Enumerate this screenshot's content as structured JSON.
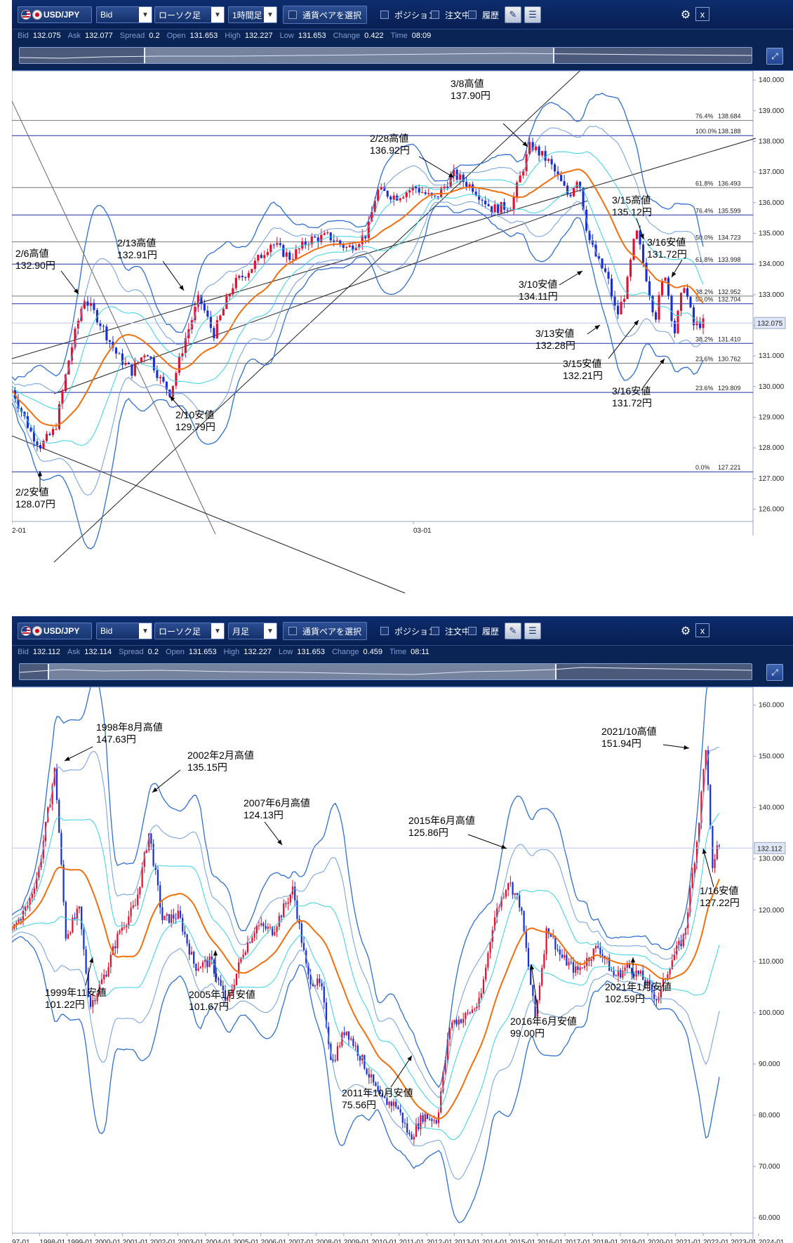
{
  "panels": [
    {
      "toolbar": {
        "symbol": "USD/JPY",
        "price_type": "Bid",
        "chart_type": "ローソク足",
        "timeframe": "1時間足",
        "pair_select_label": "通貨ペアを選択",
        "position_label": "ポジション",
        "order_label": "注文中",
        "history_label": "履歴",
        "close_label": "x"
      },
      "quote": {
        "bid_label": "Bid",
        "bid": "132.075",
        "ask_label": "Ask",
        "ask": "132.077",
        "spread_label": "Spread",
        "spread": "0.2",
        "open_label": "Open",
        "open": "131.653",
        "high_label": "High",
        "high": "132.227",
        "low_label": "Low",
        "low": "131.653",
        "change_label": "Change",
        "change": "0.422",
        "time_label": "Time",
        "time": "08:09"
      },
      "current_price_label": "132.075",
      "annotations": [
        {
          "l1": "3/8高値",
          "l2": "137.90円"
        },
        {
          "l1": "2/28高値",
          "l2": "136.92円"
        },
        {
          "l1": "3/15高値",
          "l2": "135.12円"
        },
        {
          "l1": "3/16安値",
          "l2": "131.72円"
        },
        {
          "l1": "2/13高値",
          "l2": "132.91円"
        },
        {
          "l1": "2/6高値",
          "l2": "132.90円"
        },
        {
          "l1": "3/10安値",
          "l2": "134.11円"
        },
        {
          "l1": "3/13安値",
          "l2": "132.28円"
        },
        {
          "l1": "3/15安値",
          "l2": "132.21円"
        },
        {
          "l1": "3/16安値",
          "l2": "131.72円"
        },
        {
          "l1": "2/10安値",
          "l2": "129.79円"
        },
        {
          "l1": "2/2安値",
          "l2": "128.07円"
        }
      ]
    },
    {
      "toolbar": {
        "symbol": "USD/JPY",
        "price_type": "Bid",
        "chart_type": "ローソク足",
        "timeframe": "月足",
        "pair_select_label": "通貨ペアを選択",
        "position_label": "ポジション",
        "order_label": "注文中",
        "history_label": "履歴",
        "close_label": "x"
      },
      "quote": {
        "bid_label": "Bid",
        "bid": "132.112",
        "ask_label": "Ask",
        "ask": "132.114",
        "spread_label": "Spread",
        "spread": "0.2",
        "open_label": "Open",
        "open": "131.653",
        "high_label": "High",
        "high": "132.227",
        "low_label": "Low",
        "low": "131.653",
        "change_label": "Change",
        "change": "0.459",
        "time_label": "Time",
        "time": "08:11"
      },
      "current_price_label": "132.112",
      "annotations": [
        {
          "l1": "1998年8月高値",
          "l2": "147.63円"
        },
        {
          "l1": "2002年2月高値",
          "l2": "135.15円"
        },
        {
          "l1": "2007年6月高値",
          "l2": "124.13円"
        },
        {
          "l1": "2015年6月高値",
          "l2": "125.86円"
        },
        {
          "l1": "2021/10高値",
          "l2": "151.94円"
        },
        {
          "l1": "1/16安値",
          "l2": "127.22円"
        },
        {
          "l1": "1999年11安値",
          "l2": "101.22円"
        },
        {
          "l1": "2005年1月安値",
          "l2": "101.67円"
        },
        {
          "l1": "2021年1月安値",
          "l2": "102.59円"
        },
        {
          "l1": "2016年6月安値",
          "l2": "99.00円"
        },
        {
          "l1": "2011年10月安値",
          "l2": "75.56円"
        }
      ]
    }
  ],
  "chart_data": [
    {
      "type": "candlestick",
      "timeframe": "1時間足",
      "y_ticks": [
        "126.000",
        "127.000",
        "128.000",
        "129.000",
        "130.000",
        "131.000",
        "132.000",
        "133.000",
        "134.000",
        "135.000",
        "136.000",
        "137.000",
        "138.000",
        "139.000",
        "140.000"
      ],
      "ylim": [
        125.6,
        140.3
      ],
      "x_ticks": [
        "2-01",
        "03-01"
      ],
      "fib_levels": [
        {
          "pct": "76.4%",
          "value": 138.684,
          "label": "138.684",
          "color": "#777777"
        },
        {
          "pct": "100.0%",
          "value": 138.188,
          "label": "138.188",
          "color": "#1f2fa8"
        },
        {
          "pct": "61.8%",
          "value": 136.493,
          "label": "136.493",
          "color": "#777777"
        },
        {
          "pct": "76.4%",
          "value": 135.599,
          "label": "135.599",
          "color": "#1f2fa8"
        },
        {
          "pct": "50.0%",
          "value": 134.723,
          "label": "134.723",
          "color": "#777777"
        },
        {
          "pct": "61.8%",
          "value": 133.998,
          "label": "133.998",
          "color": "#1f2fa8"
        },
        {
          "pct": "38.2%",
          "value": 132.952,
          "label": "132.952",
          "color": "#777777"
        },
        {
          "pct": "50.0%",
          "value": 132.704,
          "label": "132.704",
          "color": "#1f2fa8"
        },
        {
          "pct": "38.2%",
          "value": 131.41,
          "label": "131.410",
          "color": "#1f2fa8"
        },
        {
          "pct": "23.6%",
          "value": 130.762,
          "label": "130.762",
          "color": "#777777"
        },
        {
          "pct": "23.6%",
          "value": 129.809,
          "label": "129.809",
          "color": "#1f2fa8"
        },
        {
          "pct": "0.0%",
          "value": 127.221,
          "label": "127.221",
          "color": "#1f2fa8"
        }
      ],
      "current_price": 132.075,
      "price_path": [
        {
          "t": 0,
          "p": 129.9
        },
        {
          "t": 2,
          "p": 129.2
        },
        {
          "t": 4,
          "p": 128.5
        },
        {
          "t": 6,
          "p": 128.07
        },
        {
          "t": 9,
          "p": 128.6
        },
        {
          "t": 12,
          "p": 131.0
        },
        {
          "t": 15,
          "p": 132.9
        },
        {
          "t": 18,
          "p": 132.2
        },
        {
          "t": 22,
          "p": 131.0
        },
        {
          "t": 25,
          "p": 130.5
        },
        {
          "t": 28,
          "p": 131.2
        },
        {
          "t": 31,
          "p": 130.2
        },
        {
          "t": 33,
          "p": 129.79
        },
        {
          "t": 36,
          "p": 131.5
        },
        {
          "t": 39,
          "p": 132.91
        },
        {
          "t": 42,
          "p": 131.7
        },
        {
          "t": 46,
          "p": 133.3
        },
        {
          "t": 50,
          "p": 133.9
        },
        {
          "t": 54,
          "p": 134.7
        },
        {
          "t": 58,
          "p": 134.2
        },
        {
          "t": 62,
          "p": 134.8
        },
        {
          "t": 66,
          "p": 134.9
        },
        {
          "t": 70,
          "p": 134.5
        },
        {
          "t": 74,
          "p": 135.0
        },
        {
          "t": 76,
          "p": 136.4
        },
        {
          "t": 80,
          "p": 136.2
        },
        {
          "t": 84,
          "p": 136.5
        },
        {
          "t": 88,
          "p": 136.1
        },
        {
          "t": 92,
          "p": 136.92
        },
        {
          "t": 96,
          "p": 136.5
        },
        {
          "t": 100,
          "p": 135.8
        },
        {
          "t": 104,
          "p": 135.9
        },
        {
          "t": 108,
          "p": 137.9
        },
        {
          "t": 112,
          "p": 137.3
        },
        {
          "t": 116,
          "p": 136.2
        },
        {
          "t": 118,
          "p": 136.9
        },
        {
          "t": 120,
          "p": 134.9
        },
        {
          "t": 122,
          "p": 134.11
        },
        {
          "t": 124,
          "p": 133.6
        },
        {
          "t": 126,
          "p": 132.28
        },
        {
          "t": 128,
          "p": 133.2
        },
        {
          "t": 130,
          "p": 135.12
        },
        {
          "t": 132,
          "p": 133.7
        },
        {
          "t": 134,
          "p": 132.21
        },
        {
          "t": 136,
          "p": 133.8
        },
        {
          "t": 138,
          "p": 131.72
        },
        {
          "t": 140,
          "p": 133.4
        },
        {
          "t": 142,
          "p": 132.0
        },
        {
          "t": 144,
          "p": 132.075
        }
      ]
    },
    {
      "type": "candlestick",
      "timeframe": "月足",
      "y_ticks": [
        "60.000",
        "70.000",
        "80.000",
        "90.000",
        "100.000",
        "110.000",
        "120.000",
        "130.000",
        "140.000",
        "150.000",
        "160.000"
      ],
      "ylim": [
        57,
        163.5
      ],
      "x_ticks": [
        "97-01",
        "1998-01",
        "1999-01",
        "2000-01",
        "2001-01",
        "2002-01",
        "2003-01",
        "2004-01",
        "2005-01",
        "2006-01",
        "2007-01",
        "2008-01",
        "2009-01",
        "2010-01",
        "2011-01",
        "2012-01",
        "2013-01",
        "2014-01",
        "2015-01",
        "2016-01",
        "2017-01",
        "2018-01",
        "2019-01",
        "2020-01",
        "2021-01",
        "2022-01",
        "2023-01",
        "2024-01"
      ],
      "current_price": 132.112,
      "price_path": [
        {
          "t": 1997.0,
          "p": 116
        },
        {
          "t": 1997.6,
          "p": 121
        },
        {
          "t": 1998.0,
          "p": 128
        },
        {
          "t": 1998.6,
          "p": 147.63
        },
        {
          "t": 1999.0,
          "p": 115
        },
        {
          "t": 1999.5,
          "p": 120
        },
        {
          "t": 1999.9,
          "p": 101.22
        },
        {
          "t": 2000.5,
          "p": 108
        },
        {
          "t": 2001.0,
          "p": 116
        },
        {
          "t": 2001.6,
          "p": 121
        },
        {
          "t": 2002.1,
          "p": 135.15
        },
        {
          "t": 2002.6,
          "p": 118
        },
        {
          "t": 2003.2,
          "p": 119
        },
        {
          "t": 2003.8,
          "p": 109
        },
        {
          "t": 2004.4,
          "p": 110
        },
        {
          "t": 2005.0,
          "p": 101.67
        },
        {
          "t": 2005.6,
          "p": 112
        },
        {
          "t": 2006.1,
          "p": 117
        },
        {
          "t": 2006.7,
          "p": 116
        },
        {
          "t": 2007.45,
          "p": 124.13
        },
        {
          "t": 2008.0,
          "p": 107
        },
        {
          "t": 2008.5,
          "p": 105
        },
        {
          "t": 2008.9,
          "p": 90
        },
        {
          "t": 2009.4,
          "p": 97
        },
        {
          "t": 2010.0,
          "p": 91
        },
        {
          "t": 2010.7,
          "p": 83
        },
        {
          "t": 2011.3,
          "p": 82
        },
        {
          "t": 2011.8,
          "p": 75.56
        },
        {
          "t": 2012.3,
          "p": 80
        },
        {
          "t": 2012.8,
          "p": 79
        },
        {
          "t": 2013.3,
          "p": 98
        },
        {
          "t": 2013.8,
          "p": 99
        },
        {
          "t": 2014.4,
          "p": 102
        },
        {
          "t": 2014.9,
          "p": 118
        },
        {
          "t": 2015.45,
          "p": 125.86
        },
        {
          "t": 2015.9,
          "p": 121
        },
        {
          "t": 2016.45,
          "p": 99.0
        },
        {
          "t": 2016.9,
          "p": 117
        },
        {
          "t": 2017.4,
          "p": 111
        },
        {
          "t": 2018.0,
          "p": 108
        },
        {
          "t": 2018.8,
          "p": 113
        },
        {
          "t": 2019.4,
          "p": 107
        },
        {
          "t": 2019.9,
          "p": 109
        },
        {
          "t": 2020.4,
          "p": 107
        },
        {
          "t": 2021.0,
          "p": 102.59
        },
        {
          "t": 2021.5,
          "p": 110
        },
        {
          "t": 2022.0,
          "p": 115
        },
        {
          "t": 2022.5,
          "p": 135
        },
        {
          "t": 2022.8,
          "p": 151.94
        },
        {
          "t": 2023.05,
          "p": 127.22
        },
        {
          "t": 2023.2,
          "p": 133
        },
        {
          "t": 2023.3,
          "p": 132.112
        }
      ]
    }
  ]
}
